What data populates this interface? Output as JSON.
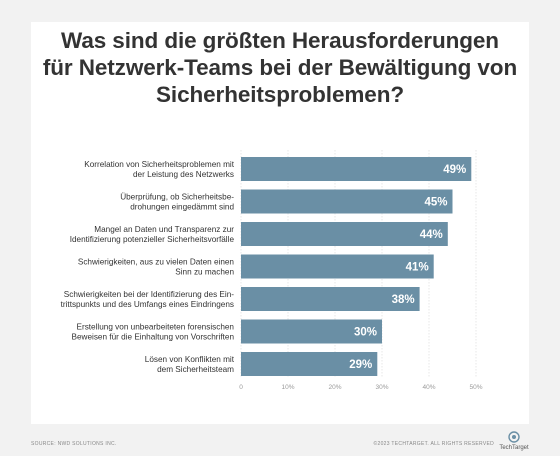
{
  "title_lines": [
    "Was sind die größten Herausforderungen",
    "für Netzwerk-Teams bei der Bewältigung von",
    "Sicherheitsproblemen?"
  ],
  "footer": {
    "source": "SOURCE: NWD SOLUTIONS INC.",
    "copyright": "©2023 TECHTARGET. ALL RIGHTS RESERVED",
    "logo_text": "TechTarget"
  },
  "colors": {
    "bar": "#6a8fa5",
    "text": "#333333",
    "grid": "#d8d8d8",
    "tick": "#999999"
  },
  "chart_data": {
    "type": "bar",
    "orientation": "horizontal",
    "categories": [
      [
        "Korrelation von Sicherheitsproblemen mit",
        "der Leistung des Netzwerks"
      ],
      [
        "Überprüfung, ob Sicherheitsbe-",
        "drohungen eingedämmt sind"
      ],
      [
        "Mangel an Daten und Transparenz zur",
        "Identifizierung potenzieller Sicherheitsvorfälle"
      ],
      [
        "Schwierigkeiten, aus zu vielen Daten einen",
        "Sinn zu machen"
      ],
      [
        "Schwierigkeiten bei der Identifizierung des Ein-",
        "trittspunkts und des Umfangs eines Eindringens"
      ],
      [
        "Erstellung von unbearbeiteten forensischen",
        "Beweisen für die Einhaltung von Vorschriften"
      ],
      [
        "Lösen von Konflikten mit",
        "dem Sicherheitsteam"
      ]
    ],
    "values": [
      49,
      45,
      44,
      41,
      38,
      30,
      29
    ],
    "value_labels": [
      "49%",
      "45%",
      "44%",
      "41%",
      "38%",
      "30%",
      "29%"
    ],
    "xticks": [
      "0",
      "10%",
      "20%",
      "30%",
      "40%",
      "50%"
    ],
    "xlim": [
      0,
      50
    ],
    "grid": true,
    "xlabel": "",
    "ylabel": ""
  }
}
